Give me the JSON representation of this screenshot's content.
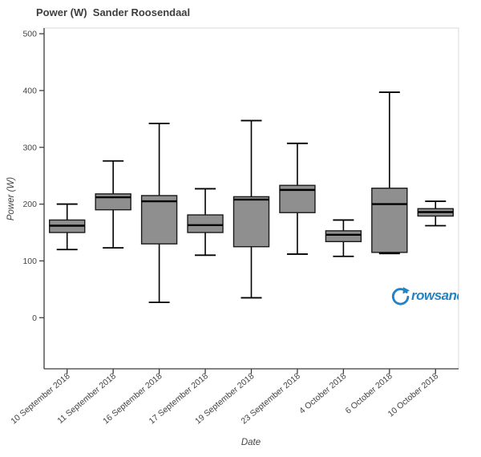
{
  "logo": {
    "text": "rowsandall",
    "color": "#2483c5"
  },
  "chart_data": {
    "type": "boxplot",
    "title": "Power (W)  Sander Roosendaal",
    "xlabel": "Date",
    "ylabel": "Power (W)",
    "ylim": [
      -90,
      510
    ],
    "yticks": [
      0,
      100,
      200,
      300,
      400,
      500
    ],
    "grid": false,
    "legend": "none",
    "box_fill": "#8f8f8f",
    "box_stroke": "#1a1a1a",
    "categories": [
      "10 September 2018",
      "11 September 2018",
      "16 September 2018",
      "17 September 2018",
      "19 September 2018",
      "23 September 2018",
      "4 October 2018",
      "6 October 2018",
      "10 October 2018"
    ],
    "series": [
      {
        "name": "Power (W)",
        "boxes": [
          {
            "low": 120,
            "q1": 150,
            "median": 162,
            "q3": 172,
            "high": 200
          },
          {
            "low": 123,
            "q1": 190,
            "median": 212,
            "q3": 218,
            "high": 276
          },
          {
            "low": 27,
            "q1": 130,
            "median": 205,
            "q3": 215,
            "high": 342
          },
          {
            "low": 110,
            "q1": 150,
            "median": 163,
            "q3": 181,
            "high": 227
          },
          {
            "low": 35,
            "q1": 125,
            "median": 208,
            "q3": 213,
            "high": 347
          },
          {
            "low": 112,
            "q1": 185,
            "median": 225,
            "q3": 233,
            "high": 307
          },
          {
            "low": 108,
            "q1": 134,
            "median": 146,
            "q3": 153,
            "high": 172
          },
          {
            "low": 113,
            "q1": 115,
            "median": 200,
            "q3": 228,
            "high": 397
          },
          {
            "low": 162,
            "q1": 179,
            "median": 186,
            "q3": 192,
            "high": 205
          }
        ]
      }
    ]
  }
}
